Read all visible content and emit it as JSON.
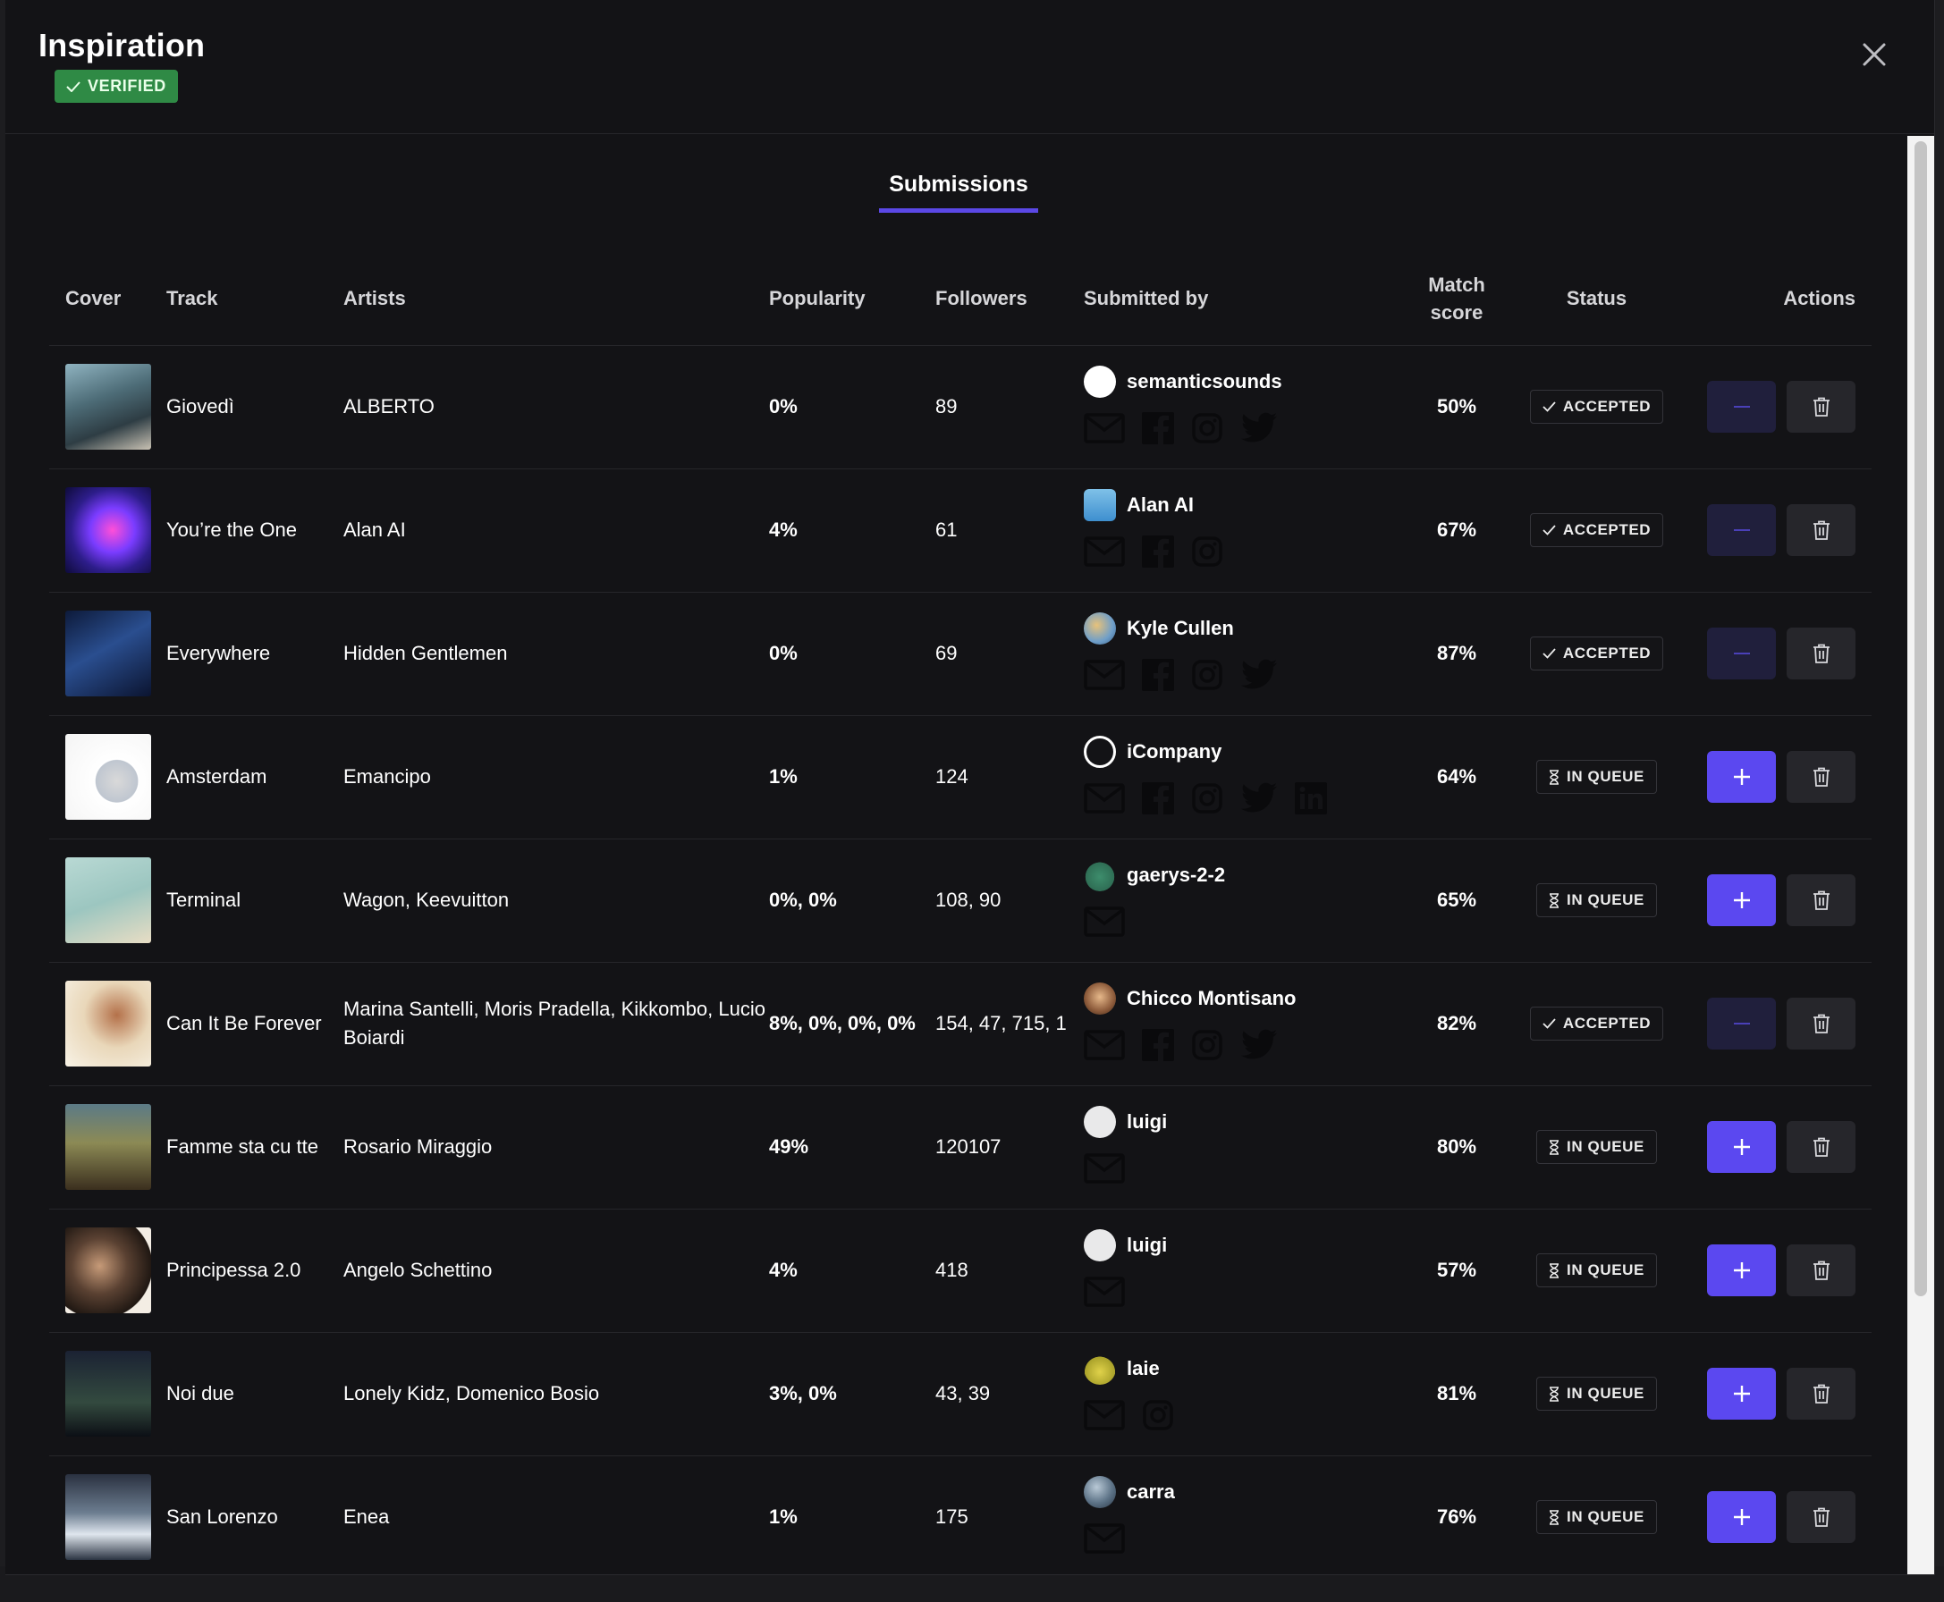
{
  "header": {
    "title": "Inspiration",
    "verified_label": "VERIFIED"
  },
  "tabs": [
    {
      "label": "Submissions",
      "active": true
    }
  ],
  "table": {
    "columns": {
      "cover": "Cover",
      "track": "Track",
      "artists": "Artists",
      "popularity": "Popularity",
      "followers": "Followers",
      "submitted_by": "Submitted by",
      "match_score_1": "Match",
      "match_score_2": "score",
      "status": "Status",
      "actions": "Actions"
    },
    "rows": [
      {
        "track": "Giovedì",
        "artists": "ALBERTO",
        "popularity": "0%",
        "followers": "89",
        "submitter": "semanticsounds",
        "socials": [
          "mail-icon",
          "facebook-icon",
          "instagram-icon",
          "twitter-icon"
        ],
        "match": "50%",
        "status": "ACCEPTED",
        "accepted": true
      },
      {
        "track": "You’re the One",
        "artists": "Alan AI",
        "popularity": "4%",
        "followers": "61",
        "submitter": "Alan AI",
        "socials": [
          "mail-icon",
          "facebook-icon",
          "instagram-icon"
        ],
        "match": "67%",
        "status": "ACCEPTED",
        "accepted": true
      },
      {
        "track": "Everywhere",
        "artists": "Hidden Gentlemen",
        "popularity": "0%",
        "followers": "69",
        "submitter": "Kyle Cullen",
        "socials": [
          "mail-icon",
          "facebook-icon",
          "instagram-icon",
          "twitter-icon"
        ],
        "match": "87%",
        "status": "ACCEPTED",
        "accepted": true
      },
      {
        "track": "Amsterdam",
        "artists": "Emancipo",
        "popularity": "1%",
        "followers": "124",
        "submitter": "iCompany",
        "socials": [
          "mail-icon",
          "facebook-icon",
          "instagram-icon",
          "twitter-icon",
          "linkedin-icon"
        ],
        "match": "64%",
        "status": "IN QUEUE",
        "accepted": false
      },
      {
        "track": "Terminal",
        "artists": "Wagon, Keevuitton",
        "popularity": "0%, 0%",
        "followers": "108, 90",
        "submitter": "gaerys-2-2",
        "socials": [
          "mail-icon"
        ],
        "match": "65%",
        "status": "IN QUEUE",
        "accepted": false
      },
      {
        "track": "Can It Be Forever",
        "artists": "Marina Santelli, Moris Pradella, Kikkombo, Lucio Boiardi",
        "popularity": "8%, 0%, 0%, 0%",
        "followers": "154, 47, 715, 1",
        "submitter": "Chicco Montisano",
        "socials": [
          "mail-icon",
          "facebook-icon",
          "instagram-icon",
          "twitter-icon"
        ],
        "match": "82%",
        "status": "ACCEPTED",
        "accepted": true
      },
      {
        "track": "Famme sta cu tte",
        "artists": "Rosario Miraggio",
        "popularity": "49%",
        "followers": "120107",
        "submitter": "luigi",
        "socials": [
          "mail-icon"
        ],
        "match": "80%",
        "status": "IN QUEUE",
        "accepted": false
      },
      {
        "track": "Principessa 2.0",
        "artists": "Angelo Schettino",
        "popularity": "4%",
        "followers": "418",
        "submitter": "luigi",
        "socials": [
          "mail-icon"
        ],
        "match": "57%",
        "status": "IN QUEUE",
        "accepted": false
      },
      {
        "track": "Noi due",
        "artists": "Lonely Kidz, Domenico Bosio",
        "popularity": "3%, 0%",
        "followers": "43, 39",
        "submitter": "laie",
        "socials": [
          "mail-icon",
          "instagram-icon"
        ],
        "match": "81%",
        "status": "IN QUEUE",
        "accepted": false
      },
      {
        "track": "San Lorenzo",
        "artists": "Enea",
        "popularity": "1%",
        "followers": "175",
        "submitter": "carra",
        "socials": [
          "mail-icon"
        ],
        "match": "76%",
        "status": "IN QUEUE",
        "accepted": false
      }
    ]
  },
  "colors": {
    "accent": "#5b48f0",
    "verified": "#2f8a45",
    "background": "#131316"
  }
}
